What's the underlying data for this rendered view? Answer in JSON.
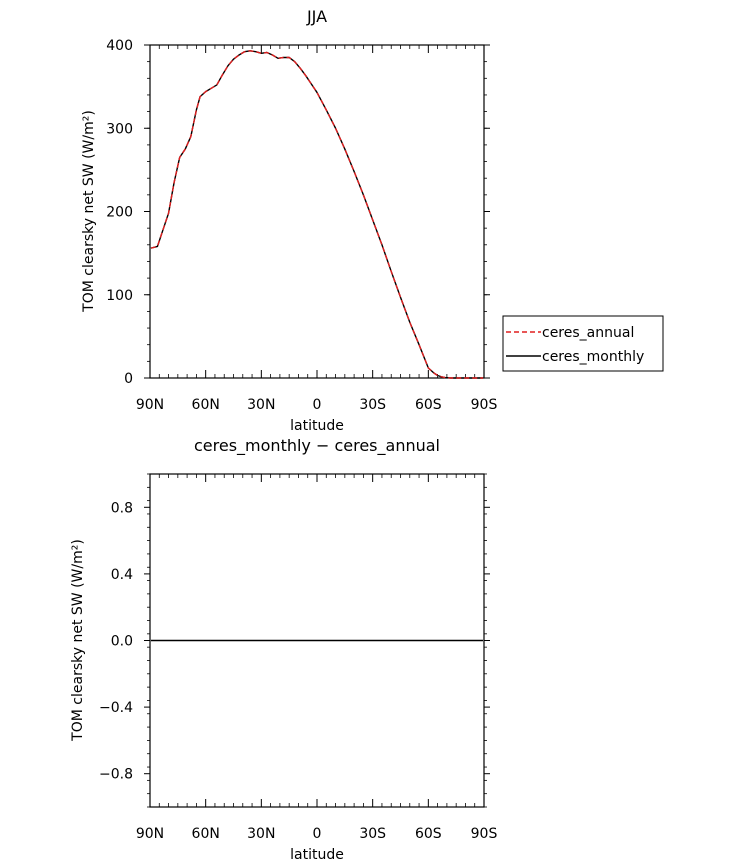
{
  "chart_data": [
    {
      "type": "line",
      "title": "JJA",
      "xlabel": "latitude",
      "ylabel": "TOM clearsky net SW (W/m²)",
      "xlim": [
        90,
        -90
      ],
      "ylim": [
        0,
        400
      ],
      "xticks": [
        90,
        60,
        30,
        0,
        -30,
        -60,
        -90
      ],
      "xtick_labels": [
        "90N",
        "60N",
        "30N",
        "0",
        "30S",
        "60S",
        "90S"
      ],
      "yticks": [
        0,
        100,
        200,
        300,
        400
      ],
      "ytick_labels": [
        "0",
        "100",
        "200",
        "300",
        "400"
      ],
      "legend_position": "right",
      "series": [
        {
          "name": "ceres_monthly",
          "color": "#000000",
          "dash": "solid",
          "x": [
            89.5,
            86,
            83,
            80,
            77,
            74,
            71,
            68,
            65,
            63,
            60,
            57,
            54,
            51,
            48,
            45,
            42,
            39,
            36,
            33,
            30,
            27,
            24,
            21,
            18,
            15,
            12,
            9,
            6,
            3,
            0,
            -5,
            -10,
            -15,
            -20,
            -25,
            -30,
            -35,
            -40,
            -45,
            -50,
            -55,
            -60,
            -63,
            -65,
            -67,
            -69,
            -72,
            -75,
            -78,
            -81,
            -84,
            -87,
            -89.5
          ],
          "y": [
            156,
            158,
            178,
            198,
            235,
            265,
            275,
            290,
            322,
            338,
            344,
            348,
            352,
            364,
            375,
            383,
            388,
            392,
            393,
            392,
            390,
            391,
            388,
            384,
            385,
            385,
            380,
            372,
            363,
            353,
            343,
            322,
            300,
            275,
            248,
            220,
            190,
            160,
            128,
            97,
            67,
            40,
            12,
            6,
            3,
            1.5,
            0.5,
            0,
            0,
            0,
            0,
            0,
            0,
            0
          ]
        },
        {
          "name": "ceres_annual",
          "color": "#e01f1f",
          "dash": "dashed",
          "x": [
            89.5,
            86,
            83,
            80,
            77,
            74,
            71,
            68,
            65,
            63,
            60,
            57,
            54,
            51,
            48,
            45,
            42,
            39,
            36,
            33,
            30,
            27,
            24,
            21,
            18,
            15,
            12,
            9,
            6,
            3,
            0,
            -5,
            -10,
            -15,
            -20,
            -25,
            -30,
            -35,
            -40,
            -45,
            -50,
            -55,
            -60,
            -63,
            -65,
            -67,
            -69,
            -72,
            -75,
            -78,
            -81,
            -84,
            -87,
            -89.5
          ],
          "y": [
            156,
            158,
            178,
            198,
            235,
            265,
            275,
            290,
            322,
            338,
            344,
            348,
            352,
            364,
            375,
            383,
            388,
            392,
            393,
            392,
            390,
            391,
            388,
            384,
            385,
            385,
            380,
            372,
            363,
            353,
            343,
            322,
            300,
            275,
            248,
            220,
            190,
            160,
            128,
            97,
            67,
            40,
            12,
            6,
            3,
            1.5,
            0.5,
            0,
            0,
            0,
            0,
            0,
            0,
            0
          ]
        }
      ]
    },
    {
      "type": "line",
      "title": "ceres_monthly − ceres_annual",
      "xlabel": "latitude",
      "ylabel": "TOM clearsky net SW (W/m²)",
      "xlim": [
        90,
        -90
      ],
      "ylim": [
        -1,
        1
      ],
      "xticks": [
        90,
        60,
        30,
        0,
        -30,
        -60,
        -90
      ],
      "xtick_labels": [
        "90N",
        "60N",
        "30N",
        "0",
        "30S",
        "60S",
        "90S"
      ],
      "yticks": [
        -0.8,
        -0.4,
        0.0,
        0.4,
        0.8
      ],
      "ytick_labels": [
        "−0.8",
        "−0.4",
        "0.0",
        "0.4",
        "0.8"
      ],
      "series": [
        {
          "name": "",
          "color": "#000000",
          "dash": "solid",
          "x": [
            89.5,
            -89.5
          ],
          "y": [
            0,
            0
          ]
        }
      ]
    }
  ]
}
